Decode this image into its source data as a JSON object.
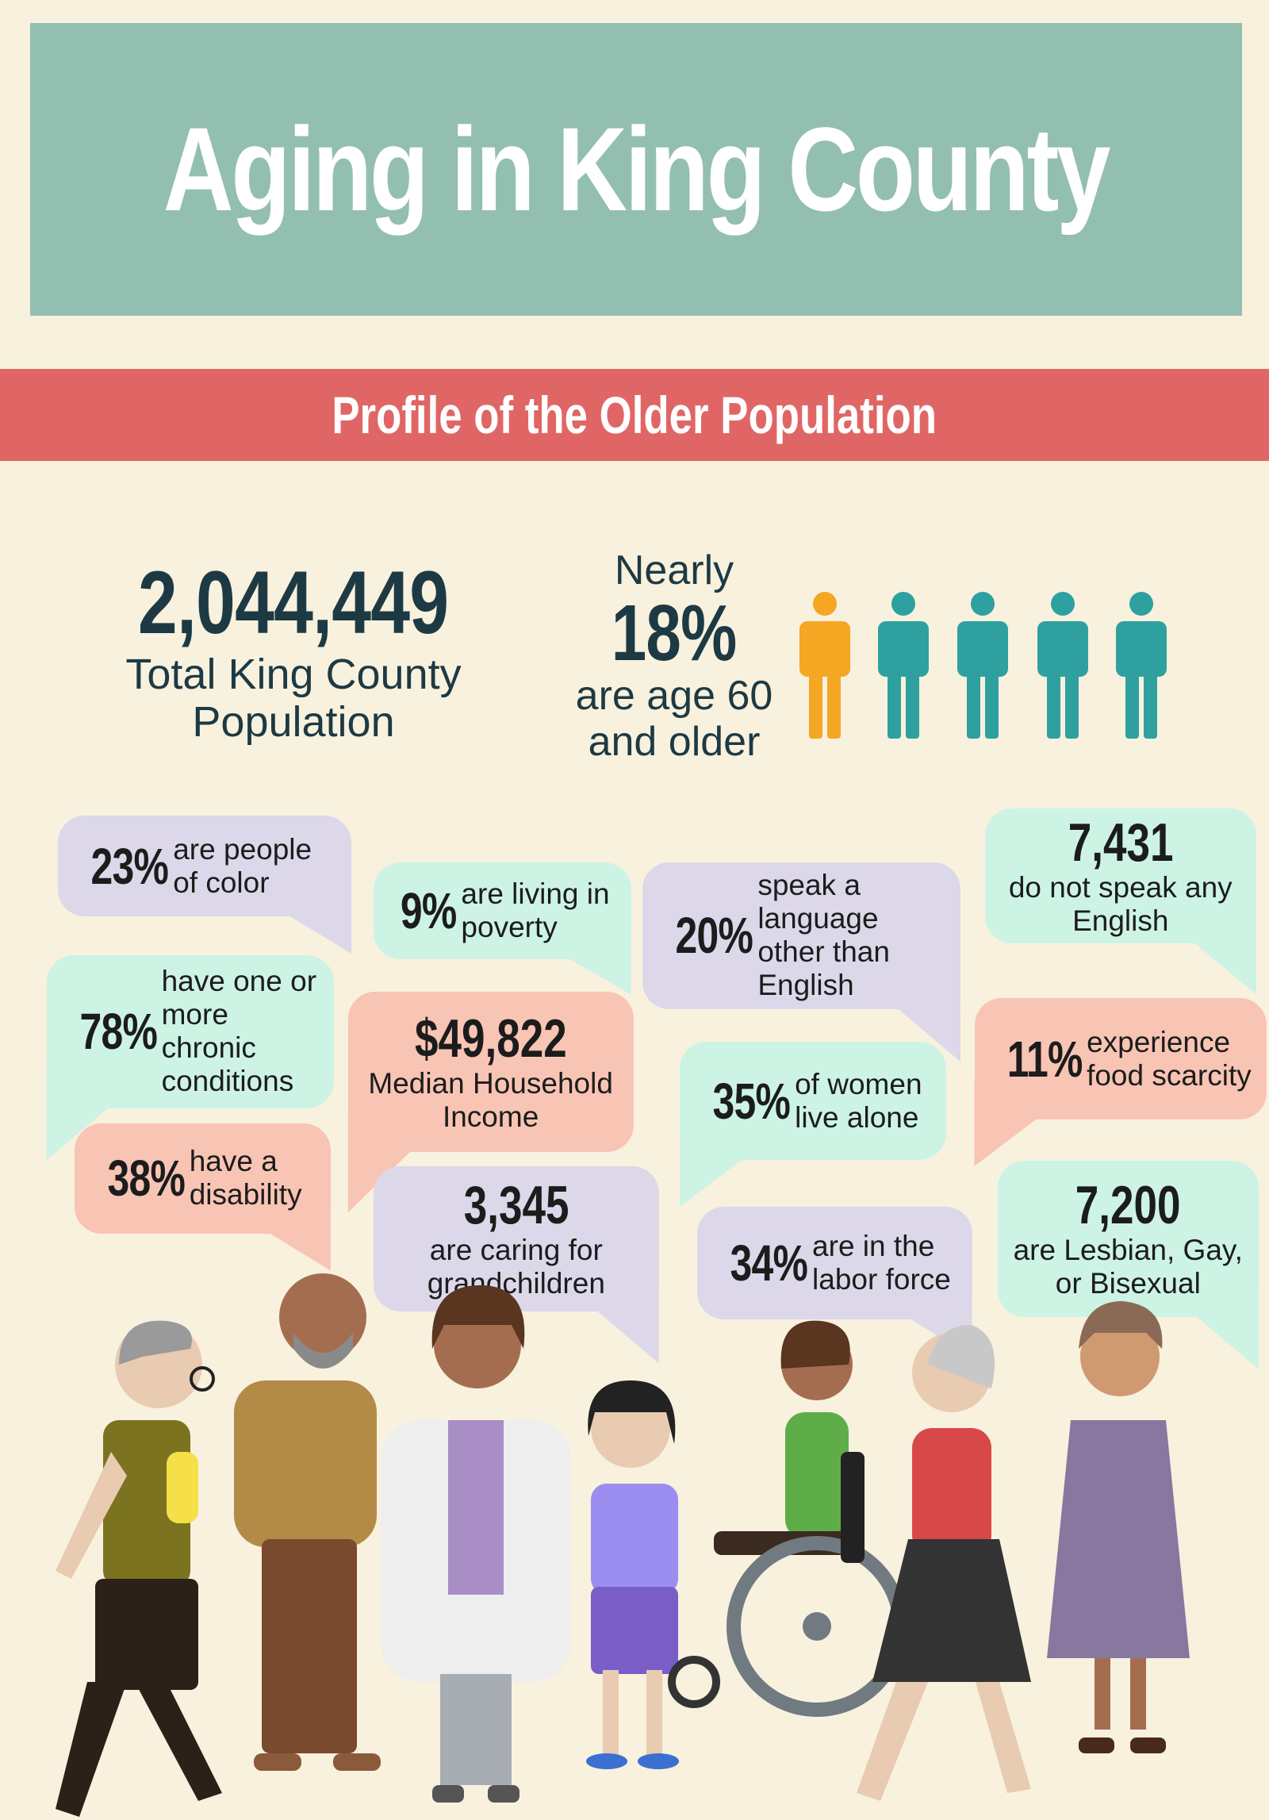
{
  "header": {
    "title": "Aging in King County"
  },
  "banner": {
    "title": "Profile of the Older Population"
  },
  "population": {
    "figure": "2,044,449",
    "label": "Total King County Population"
  },
  "older_share": {
    "prefix": "Nearly",
    "figure": "18%",
    "label": "are age 60 and older"
  },
  "bubbles": [
    {
      "figure": "23%",
      "text": "are people of color"
    },
    {
      "figure": "9%",
      "text": "are living in poverty"
    },
    {
      "figure": "20%",
      "text": "speak a language other than English"
    },
    {
      "figure": "7,431",
      "text": "do not speak any English"
    },
    {
      "figure": "78%",
      "text": "have one or more chronic conditions"
    },
    {
      "figure": "$49,822",
      "text": "Median Household Income"
    },
    {
      "figure": "35%",
      "text": "of women live alone"
    },
    {
      "figure": "11%",
      "text": "experience food scarcity"
    },
    {
      "figure": "38%",
      "text": "have a disability"
    },
    {
      "figure": "3,345",
      "text": "are caring for grandchildren"
    },
    {
      "figure": "34%",
      "text": "are in the labor force"
    },
    {
      "figure": "7,200",
      "text": "are Lesbian, Gay, or Bisexual"
    }
  ]
}
